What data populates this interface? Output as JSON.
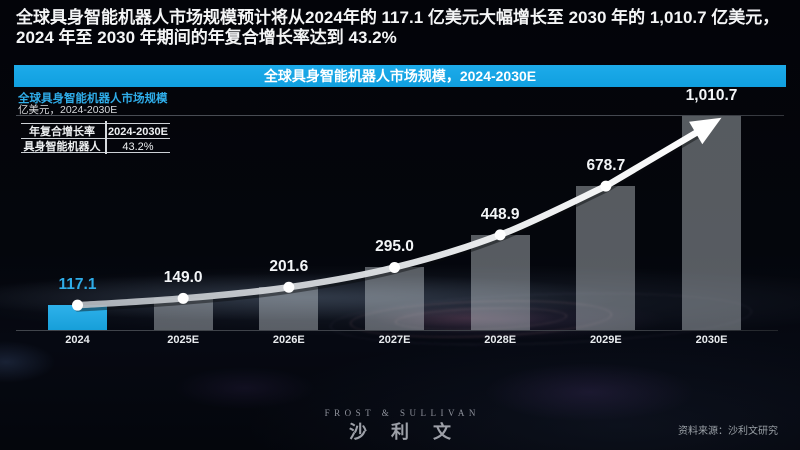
{
  "headline": {
    "line1": "全球具身智能机器人市场规模预计将从2024年的 117.1 亿美元大幅增长至 2030 年的 1,010.7 亿美元，",
    "line2": "2024 年至 2030 年期间的年复合增长率达到 43.2%"
  },
  "banner": {
    "text": "全球具身智能机器人市场规模，2024-2030E",
    "accent_color": "#14A4E4"
  },
  "chart_header": {
    "title": "全球具身智能机器人市场规模",
    "unit_note": "亿美元，2024-2030E"
  },
  "cagr_table": {
    "header": [
      "年复合增长率",
      "2024-2030E"
    ],
    "rows": [
      [
        "具身智能机器人",
        "43.2%"
      ]
    ]
  },
  "chart_data": {
    "type": "bar",
    "title": "全球具身智能机器人市场规模，2024-2030E",
    "unit": "亿美元",
    "categories": [
      "2024",
      "2025E",
      "2026E",
      "2027E",
      "2028E",
      "2029E",
      "2030E"
    ],
    "values": [
      117.1,
      149.0,
      201.6,
      295.0,
      448.9,
      678.7,
      1010.7
    ],
    "value_labels": [
      "117.1",
      "149.0",
      "201.6",
      "295.0",
      "448.9",
      "678.7",
      "1,010.7"
    ],
    "highlight_index": 0,
    "highlight_color": "#25AAE3",
    "bar_color": "rgba(213,219,225,0.40)",
    "trend_line": "white ascending curve with dots and arrow",
    "cagr": "43.2%",
    "ylim": [
      0,
      1060
    ],
    "legend_position": "none",
    "grid": false
  },
  "footer": {
    "logo_en": "FROST & SULLIVAN",
    "logo_cn": "沙利文",
    "source": "资料来源：沙利文研究"
  }
}
